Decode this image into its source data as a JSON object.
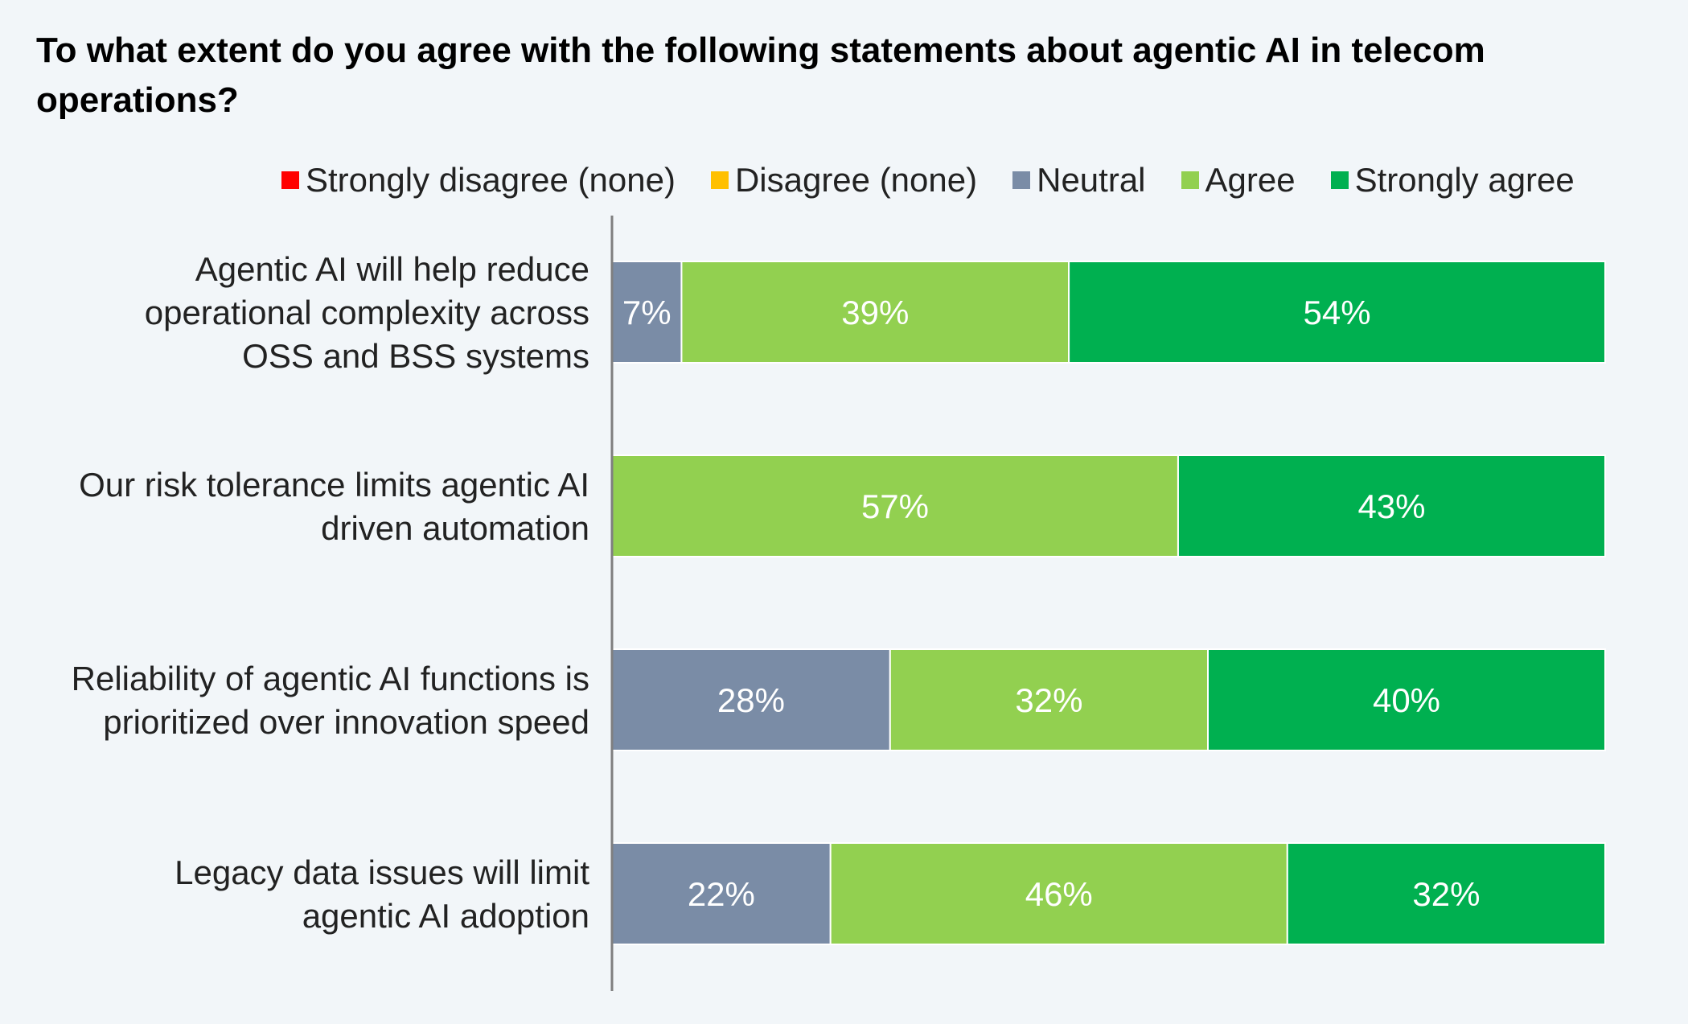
{
  "title": "To what extent do you agree with the following statements about agentic AI in telecom operations?",
  "chart_data": {
    "type": "bar",
    "orientation": "horizontal",
    "stacked": true,
    "title": "To what extent do you agree with the following statements about agentic AI in telecom operations?",
    "categories": [
      [
        "Agentic AI will help reduce",
        "operational complexity across",
        "OSS and BSS systems"
      ],
      [
        "Our risk tolerance limits agentic AI",
        "driven automation"
      ],
      [
        "Reliability of agentic AI functions is",
        "prioritized over innovation speed"
      ],
      [
        "Legacy data issues will limit",
        "agentic AI adoption"
      ]
    ],
    "series": [
      {
        "name": "Strongly disagree (none)",
        "color": "#ff0000",
        "values": [
          0,
          0,
          0,
          0
        ]
      },
      {
        "name": "Disagree (none)",
        "color": "#ffc000",
        "values": [
          0,
          0,
          0,
          0
        ]
      },
      {
        "name": "Neutral",
        "color": "#7a8ca6",
        "values": [
          7,
          0,
          28,
          22
        ]
      },
      {
        "name": "Agree",
        "color": "#92d050",
        "values": [
          39,
          57,
          32,
          46
        ]
      },
      {
        "name": "Strongly agree",
        "color": "#00b050",
        "values": [
          54,
          43,
          40,
          32
        ]
      }
    ],
    "value_suffix": "%",
    "xlim": [
      0,
      100
    ],
    "legend_position": "top",
    "grid": false
  }
}
